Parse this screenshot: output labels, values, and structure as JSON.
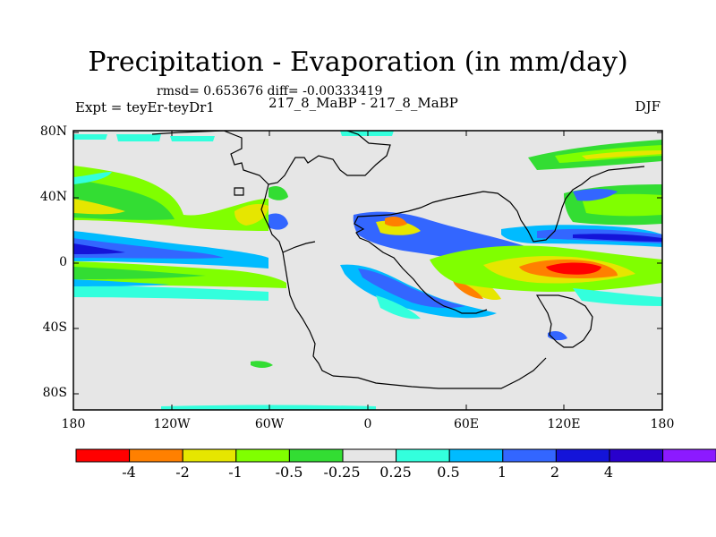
{
  "title": "Precipitation - Evaporation (in mm/day)",
  "stats": "rmsd= 0.653676 diff= -0.00333419",
  "experiment": "Expt = teyEr-teyDr1",
  "center_string": "217_8_MaBP - 217_8_MaBP",
  "season": "DJF",
  "lat_ticks": [
    "80N",
    "40N",
    "0",
    "40S",
    "80S"
  ],
  "lon_ticks": [
    "180",
    "120W",
    "60W",
    "0",
    "60E",
    "120E",
    "180"
  ],
  "colorbar": {
    "colors": [
      "#ff0000",
      "#ff8000",
      "#e6e600",
      "#80ff00",
      "#33dd33",
      "#e6e6e6",
      "#33ffdd",
      "#00bbff",
      "#3366ff",
      "#1414d9",
      "#2800cc",
      "#8c1aff"
    ],
    "labels": [
      "-4",
      "-2",
      "-1",
      "-0.5",
      "-0.25",
      "0.25",
      "0.5",
      "1",
      "2",
      "4"
    ]
  },
  "colors": {
    "land_fill": "#e6e6e6",
    "coast": "#000000"
  }
}
